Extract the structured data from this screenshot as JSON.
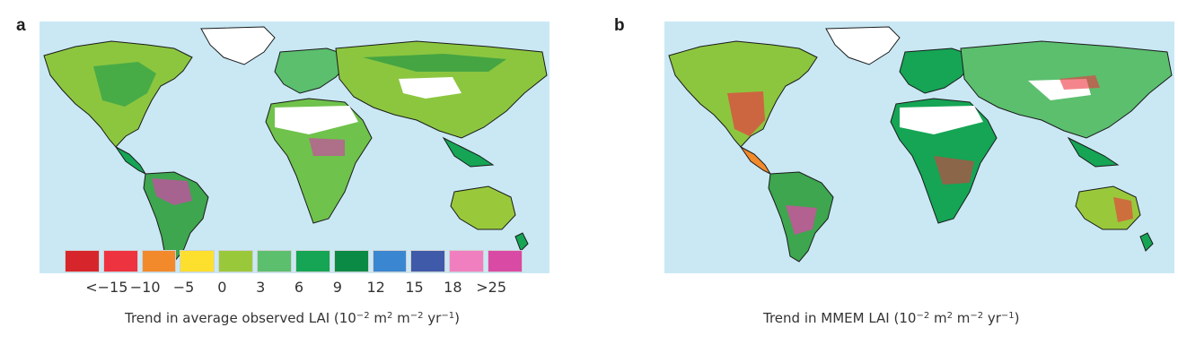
{
  "panels": [
    {
      "letter": "a",
      "caption_text": "Trend in average observed LAI (10",
      "caption_sub1": "−2",
      "caption_mid": " m",
      "caption_sub2": "2",
      "caption_mid2": " m",
      "caption_sub3": "−2",
      "caption_mid3": " yr",
      "caption_sub4": "−1",
      "caption_end": ")"
    },
    {
      "letter": "b",
      "caption_text": "Trend in MMEM LAI (10",
      "caption_sub1": "−2",
      "caption_mid": " m",
      "caption_sub2": "2",
      "caption_mid2": " m",
      "caption_sub3": "−2",
      "caption_mid3": " yr",
      "caption_sub4": "−1",
      "caption_end": ")"
    }
  ],
  "legend": {
    "colors": [
      "#d7262b",
      "#ee3340",
      "#f28a2c",
      "#fde02d",
      "#99c93b",
      "#5bbf6e",
      "#15a555",
      "#0b8a45",
      "#3a86d1",
      "#3f5aa9",
      "#f07fc0",
      "#d94aa5"
    ],
    "tick_labels": [
      "<−15",
      "−10",
      "−5",
      "0",
      "3",
      "6",
      "9",
      "12",
      "15",
      "18",
      ">25"
    ]
  },
  "colors": {
    "ocean": "#c9e8f4",
    "ice": "#ffffff",
    "border": "#1a1a1a"
  }
}
